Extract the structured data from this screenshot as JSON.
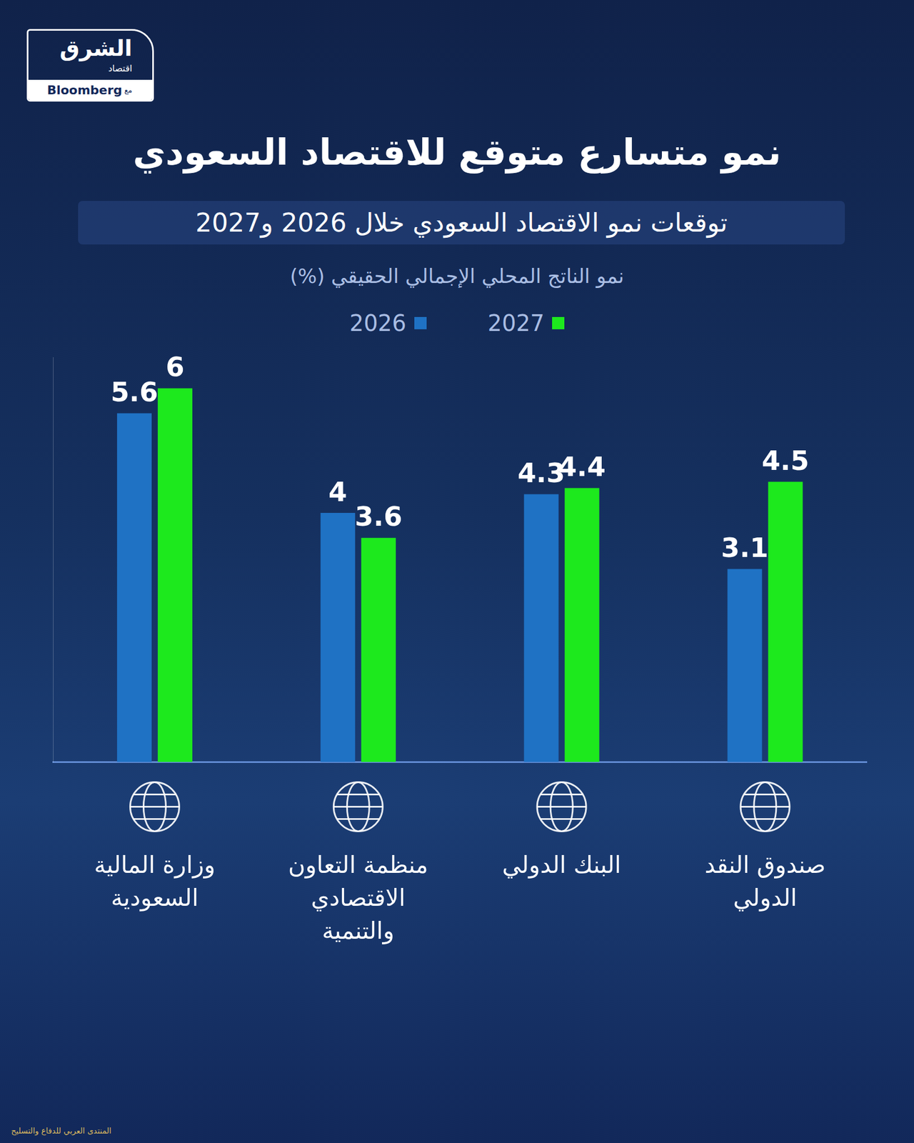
{
  "branding": {
    "name": "الشرق",
    "section": "اقتصاد",
    "with": "مع",
    "partner": "Bloomberg"
  },
  "watermark": "المنتدى العربي للدفاع والتسليح",
  "chart_data": {
    "type": "bar",
    "title": "نمو متسارع متوقع للاقتصاد السعودي",
    "subtitle": "توقعات نمو الاقتصاد السعودي خلال 2026 و2027",
    "ylabel": "نمو الناتج المحلي الإجمالي الحقيقي (%)",
    "categories": [
      "وزارة المالية السعودية",
      "منظمة التعاون الاقتصادي والتنمية",
      "البنك الدولي",
      "صندوق النقد الدولي"
    ],
    "series": [
      {
        "name": "2026",
        "color": "#1f72c4",
        "values": [
          5.6,
          4,
          4.3,
          3.1
        ]
      },
      {
        "name": "2027",
        "color": "#1de91d",
        "values": [
          6,
          3.6,
          4.4,
          4.5
        ]
      }
    ],
    "ylim": [
      0,
      6.5
    ],
    "yticks": [
      0
    ],
    "grid": false,
    "legend": "top",
    "data_labels": true,
    "tick_labels": "x"
  }
}
